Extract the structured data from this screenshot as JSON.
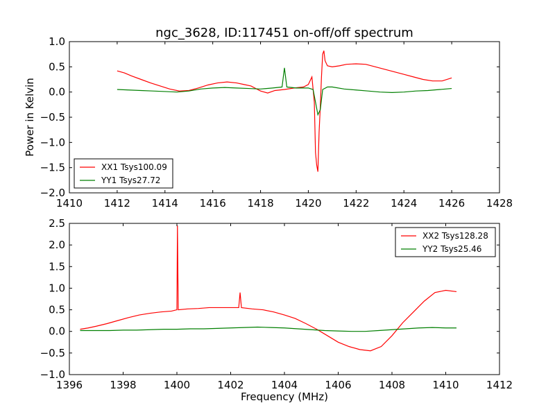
{
  "title": "ngc_3628, ID:117451 on-off/off spectrum",
  "colors": {
    "xx": "#ff0000",
    "yy": "#007f00"
  },
  "chart_data": [
    {
      "type": "line",
      "ylabel": "Power in Kelvin",
      "xlabel": "",
      "xlim": [
        1410,
        1428
      ],
      "ylim": [
        -2.0,
        1.0
      ],
      "xticks": [
        "1410",
        "1412",
        "1414",
        "1416",
        "1418",
        "1420",
        "1422",
        "1424",
        "1426",
        "1428"
      ],
      "yticks": [
        "1.0",
        "0.5",
        "0.0",
        "−0.5",
        "−1.0",
        "−1.5",
        "−2.0"
      ],
      "legend_position": "lower-left",
      "series": [
        {
          "name": "XX1 Tsys100.09",
          "color": "#ff0000",
          "x": [
            1412.0,
            1412.3,
            1412.6,
            1413.0,
            1413.4,
            1413.8,
            1414.2,
            1414.6,
            1415.0,
            1415.4,
            1415.8,
            1416.2,
            1416.6,
            1417.0,
            1417.3,
            1417.6,
            1418.0,
            1418.3,
            1418.6,
            1419.0,
            1419.4,
            1419.8,
            1420.0,
            1420.15,
            1420.25,
            1420.3,
            1420.35,
            1420.4,
            1420.45,
            1420.5,
            1420.55,
            1420.6,
            1420.65,
            1420.7,
            1420.8,
            1421.0,
            1421.3,
            1421.6,
            1422.0,
            1422.4,
            1422.8,
            1423.2,
            1423.6,
            1424.0,
            1424.4,
            1424.8,
            1425.2,
            1425.6,
            1426.0
          ],
          "y": [
            0.42,
            0.38,
            0.32,
            0.25,
            0.18,
            0.12,
            0.06,
            0.02,
            0.03,
            0.08,
            0.14,
            0.18,
            0.2,
            0.18,
            0.15,
            0.12,
            0.02,
            -0.02,
            0.03,
            0.05,
            0.08,
            0.1,
            0.15,
            0.3,
            -0.2,
            -1.2,
            -1.45,
            -1.58,
            -0.8,
            -0.3,
            0.3,
            0.75,
            0.82,
            0.62,
            0.52,
            0.5,
            0.52,
            0.55,
            0.56,
            0.55,
            0.5,
            0.45,
            0.4,
            0.35,
            0.3,
            0.25,
            0.22,
            0.22,
            0.28
          ]
        },
        {
          "name": "YY1 Tsys27.72",
          "color": "#007f00",
          "x": [
            1412.0,
            1412.5,
            1413.0,
            1413.5,
            1414.0,
            1414.5,
            1415.0,
            1415.5,
            1416.0,
            1416.5,
            1417.0,
            1417.5,
            1418.0,
            1418.5,
            1418.9,
            1419.0,
            1419.1,
            1419.5,
            1420.0,
            1420.2,
            1420.3,
            1420.4,
            1420.5,
            1420.6,
            1420.8,
            1421.0,
            1421.5,
            1422.0,
            1422.5,
            1423.0,
            1423.5,
            1424.0,
            1424.5,
            1425.0,
            1425.5,
            1426.0
          ],
          "y": [
            0.05,
            0.04,
            0.03,
            0.02,
            0.01,
            0.0,
            0.02,
            0.06,
            0.08,
            0.09,
            0.08,
            0.07,
            0.06,
            0.08,
            0.1,
            0.48,
            0.1,
            0.08,
            0.08,
            0.05,
            -0.2,
            -0.45,
            -0.35,
            0.05,
            0.1,
            0.1,
            0.06,
            0.04,
            0.02,
            0.0,
            -0.01,
            0.0,
            0.02,
            0.03,
            0.05,
            0.07
          ]
        }
      ]
    },
    {
      "type": "line",
      "ylabel": "",
      "xlabel": "Frequency (MHz)",
      "xlim": [
        1396,
        1412
      ],
      "ylim": [
        -1.0,
        2.5
      ],
      "xticks": [
        "1396",
        "1398",
        "1400",
        "1402",
        "1404",
        "1406",
        "1408",
        "1410",
        "1412"
      ],
      "yticks": [
        "2.5",
        "2.0",
        "1.5",
        "1.0",
        "0.5",
        "0.0",
        "−0.5",
        "−1.0"
      ],
      "legend_position": "upper-right",
      "series": [
        {
          "name": "XX2 Tsys128.28",
          "color": "#ff0000",
          "x": [
            1396.4,
            1396.7,
            1397.0,
            1397.4,
            1397.8,
            1398.2,
            1398.6,
            1399.0,
            1399.4,
            1399.8,
            1400.0,
            1400.02,
            1400.05,
            1400.4,
            1400.8,
            1401.2,
            1401.6,
            1402.0,
            1402.3,
            1402.35,
            1402.4,
            1402.8,
            1403.2,
            1403.6,
            1404.0,
            1404.4,
            1404.8,
            1405.2,
            1405.6,
            1406.0,
            1406.4,
            1406.8,
            1407.2,
            1407.6,
            1408.0,
            1408.4,
            1408.8,
            1409.2,
            1409.6,
            1410.0,
            1410.4
          ],
          "y": [
            0.05,
            0.08,
            0.12,
            0.18,
            0.25,
            0.32,
            0.38,
            0.42,
            0.45,
            0.47,
            0.5,
            2.45,
            0.5,
            0.52,
            0.53,
            0.55,
            0.55,
            0.55,
            0.55,
            0.9,
            0.55,
            0.52,
            0.5,
            0.45,
            0.38,
            0.3,
            0.18,
            0.05,
            -0.1,
            -0.25,
            -0.35,
            -0.42,
            -0.45,
            -0.35,
            -0.1,
            0.2,
            0.45,
            0.7,
            0.9,
            0.95,
            0.92
          ]
        },
        {
          "name": "YY2 Tsys25.46",
          "color": "#007f00",
          "x": [
            1396.4,
            1397.0,
            1397.5,
            1398.0,
            1398.5,
            1399.0,
            1399.5,
            1400.0,
            1400.5,
            1401.0,
            1401.5,
            1402.0,
            1402.5,
            1403.0,
            1403.5,
            1404.0,
            1404.5,
            1405.0,
            1405.5,
            1406.0,
            1406.5,
            1407.0,
            1407.5,
            1408.0,
            1408.5,
            1409.0,
            1409.5,
            1410.0,
            1410.4
          ],
          "y": [
            0.02,
            0.02,
            0.02,
            0.03,
            0.03,
            0.04,
            0.05,
            0.05,
            0.06,
            0.06,
            0.07,
            0.08,
            0.09,
            0.1,
            0.09,
            0.08,
            0.06,
            0.04,
            0.02,
            0.01,
            0.0,
            0.0,
            0.02,
            0.04,
            0.06,
            0.08,
            0.09,
            0.08,
            0.08
          ]
        }
      ]
    }
  ]
}
